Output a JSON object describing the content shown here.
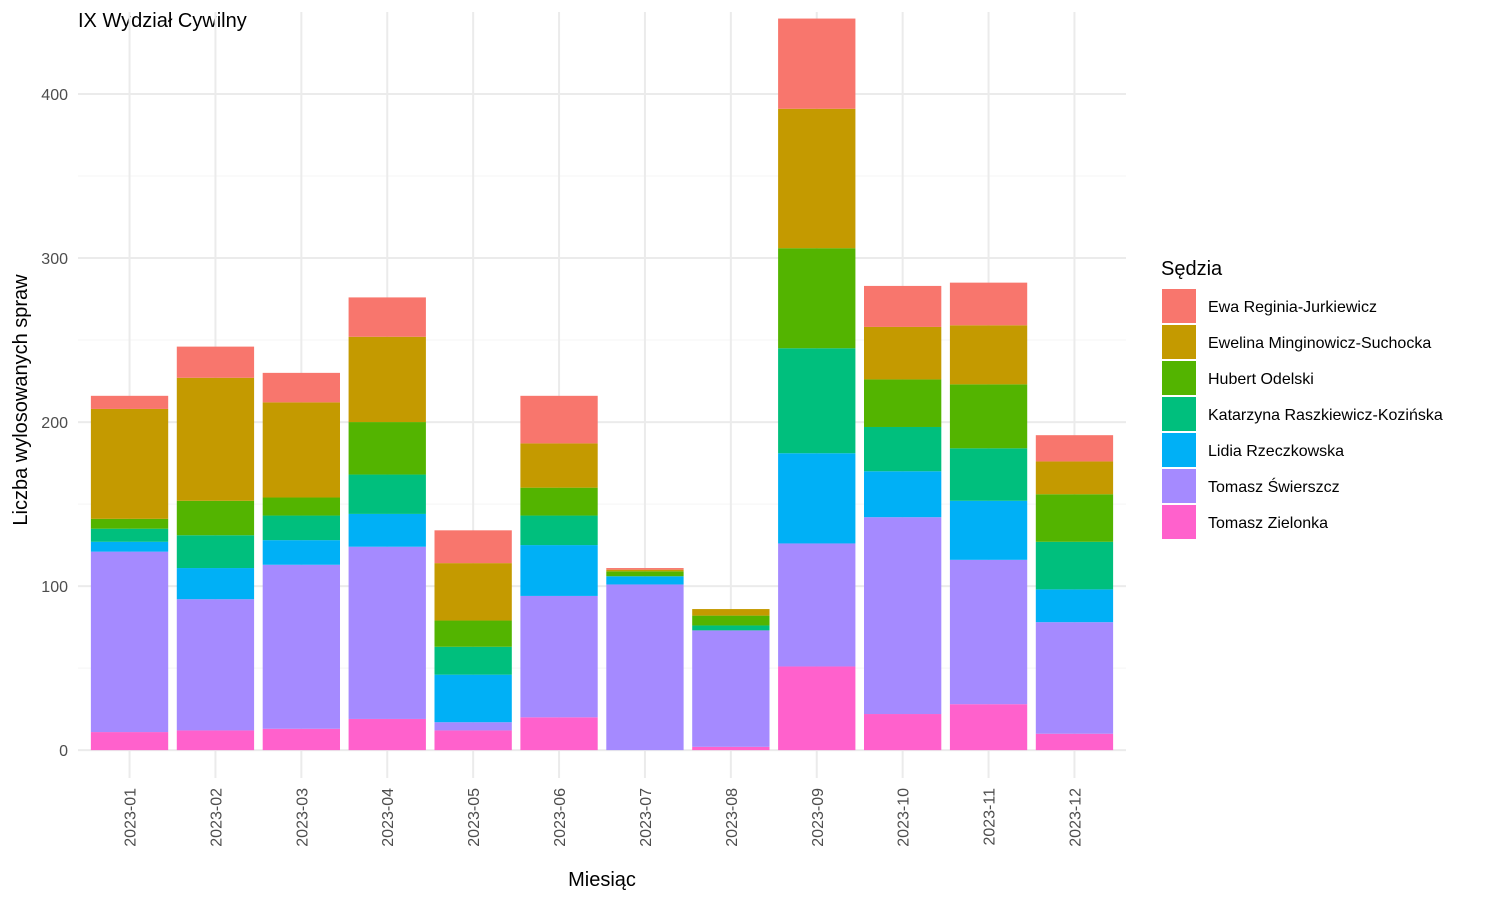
{
  "chart_data": {
    "type": "bar",
    "stacked": true,
    "title": "IX Wydział Cywilny",
    "xlabel": "Miesiąc",
    "ylabel": "Liczba wylosowanych spraw",
    "ylim": [
      -17,
      450
    ],
    "yticks": [
      0,
      100,
      200,
      300,
      400
    ],
    "grid": true,
    "legend": {
      "title": "Sędzia",
      "position": "right"
    },
    "categories": [
      "2023-01",
      "2023-02",
      "2023-03",
      "2023-04",
      "2023-05",
      "2023-06",
      "2023-07",
      "2023-08",
      "2023-09",
      "2023-10",
      "2023-11",
      "2023-12"
    ],
    "series": [
      {
        "name": "Tomasz Zielonka",
        "color": "#FF61CC",
        "values": [
          11,
          12,
          13,
          19,
          12,
          20,
          0,
          2,
          51,
          22,
          28,
          10
        ]
      },
      {
        "name": "Tomasz Świerszcz",
        "color": "#A58AFF",
        "values": [
          110,
          80,
          100,
          105,
          5,
          74,
          101,
          71,
          75,
          120,
          88,
          68
        ]
      },
      {
        "name": "Lidia Rzeczkowska",
        "color": "#00B0F6",
        "values": [
          6,
          19,
          15,
          20,
          29,
          31,
          5,
          0,
          55,
          28,
          36,
          20
        ]
      },
      {
        "name": "Katarzyna Raszkiewicz-Kozińska",
        "color": "#00BF7D",
        "values": [
          8,
          20,
          15,
          24,
          17,
          18,
          0,
          3,
          64,
          27,
          32,
          29
        ]
      },
      {
        "name": "Hubert Odelski",
        "color": "#53B400",
        "values": [
          6,
          21,
          11,
          32,
          16,
          17,
          3,
          6,
          61,
          29,
          39,
          29
        ]
      },
      {
        "name": "Ewelina Minginowicz-Suchocka",
        "color": "#C49A00",
        "values": [
          67,
          75,
          58,
          52,
          35,
          27,
          1,
          4,
          85,
          32,
          36,
          20
        ]
      },
      {
        "name": "Ewa Reginia-Jurkiewicz",
        "color": "#F8766D",
        "values": [
          8,
          19,
          18,
          24,
          20,
          29,
          1,
          0,
          55,
          25,
          26,
          16
        ]
      }
    ],
    "legend_order": [
      "Ewa Reginia-Jurkiewicz",
      "Ewelina Minginowicz-Suchocka",
      "Hubert Odelski",
      "Katarzyna Raszkiewicz-Kozińska",
      "Lidia Rzeczkowska",
      "Tomasz Świerszcz",
      "Tomasz Zielonka"
    ]
  }
}
